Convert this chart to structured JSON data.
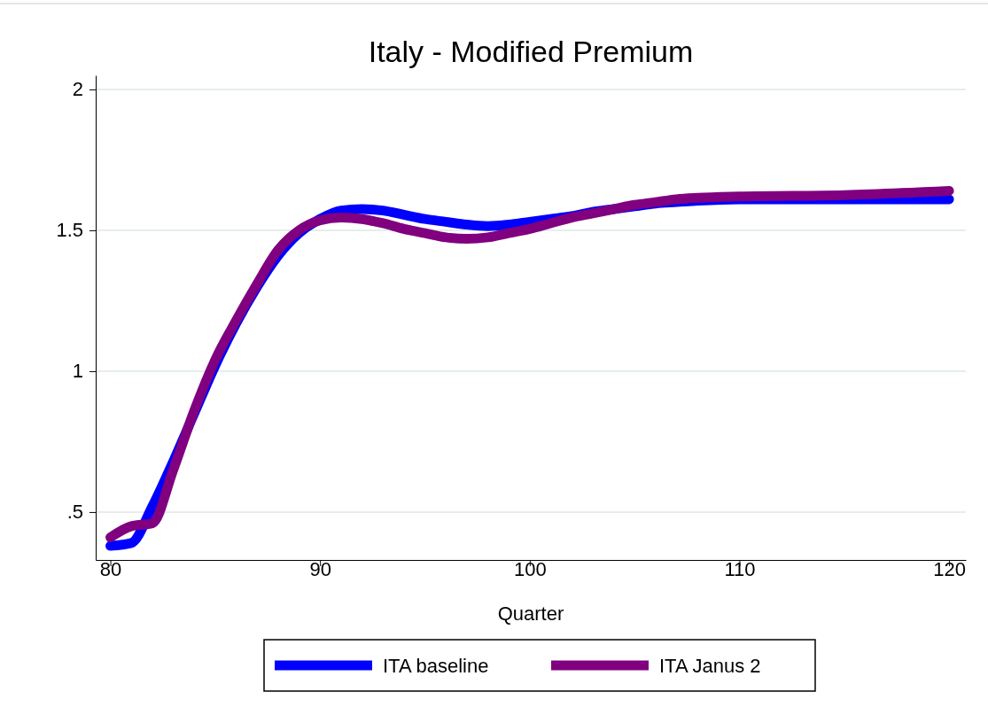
{
  "chart_data": {
    "type": "line",
    "title": "Italy - Modified Premium",
    "xlabel": "Quarter",
    "x": [
      80,
      81,
      82,
      83,
      84,
      85,
      86,
      87,
      88,
      89,
      90,
      91,
      92,
      93,
      94,
      95,
      96,
      97,
      98,
      99,
      100,
      101,
      102,
      103,
      104,
      105,
      106,
      107,
      108,
      110,
      115,
      120
    ],
    "series": [
      {
        "name": "ITA baseline",
        "color": "#0000ff",
        "values": [
          0.38,
          0.39,
          0.52,
          0.68,
          0.85,
          1.02,
          1.17,
          1.3,
          1.41,
          1.49,
          1.54,
          1.57,
          1.575,
          1.57,
          1.555,
          1.54,
          1.53,
          1.52,
          1.515,
          1.52,
          1.53,
          1.54,
          1.55,
          1.565,
          1.575,
          1.585,
          1.595,
          1.6,
          1.605,
          1.61,
          1.61,
          1.61
        ]
      },
      {
        "name": "ITA Janus 2",
        "color": "#800080",
        "values": [
          0.41,
          0.45,
          0.46,
          0.65,
          0.86,
          1.04,
          1.18,
          1.31,
          1.43,
          1.5,
          1.535,
          1.545,
          1.54,
          1.525,
          1.505,
          1.49,
          1.475,
          1.47,
          1.475,
          1.49,
          1.505,
          1.525,
          1.545,
          1.56,
          1.575,
          1.59,
          1.6,
          1.61,
          1.615,
          1.62,
          1.625,
          1.64
        ]
      }
    ],
    "xlim": [
      79.3,
      120.8
    ],
    "xticks": [
      80,
      90,
      100,
      110,
      120
    ],
    "ylim": [
      0.33,
      2.05
    ],
    "yticks": [
      {
        "value": 0.5,
        "label": ".5"
      },
      1,
      1.5,
      2
    ],
    "grid": "y",
    "legend": "bottom",
    "line_style": "solid"
  }
}
